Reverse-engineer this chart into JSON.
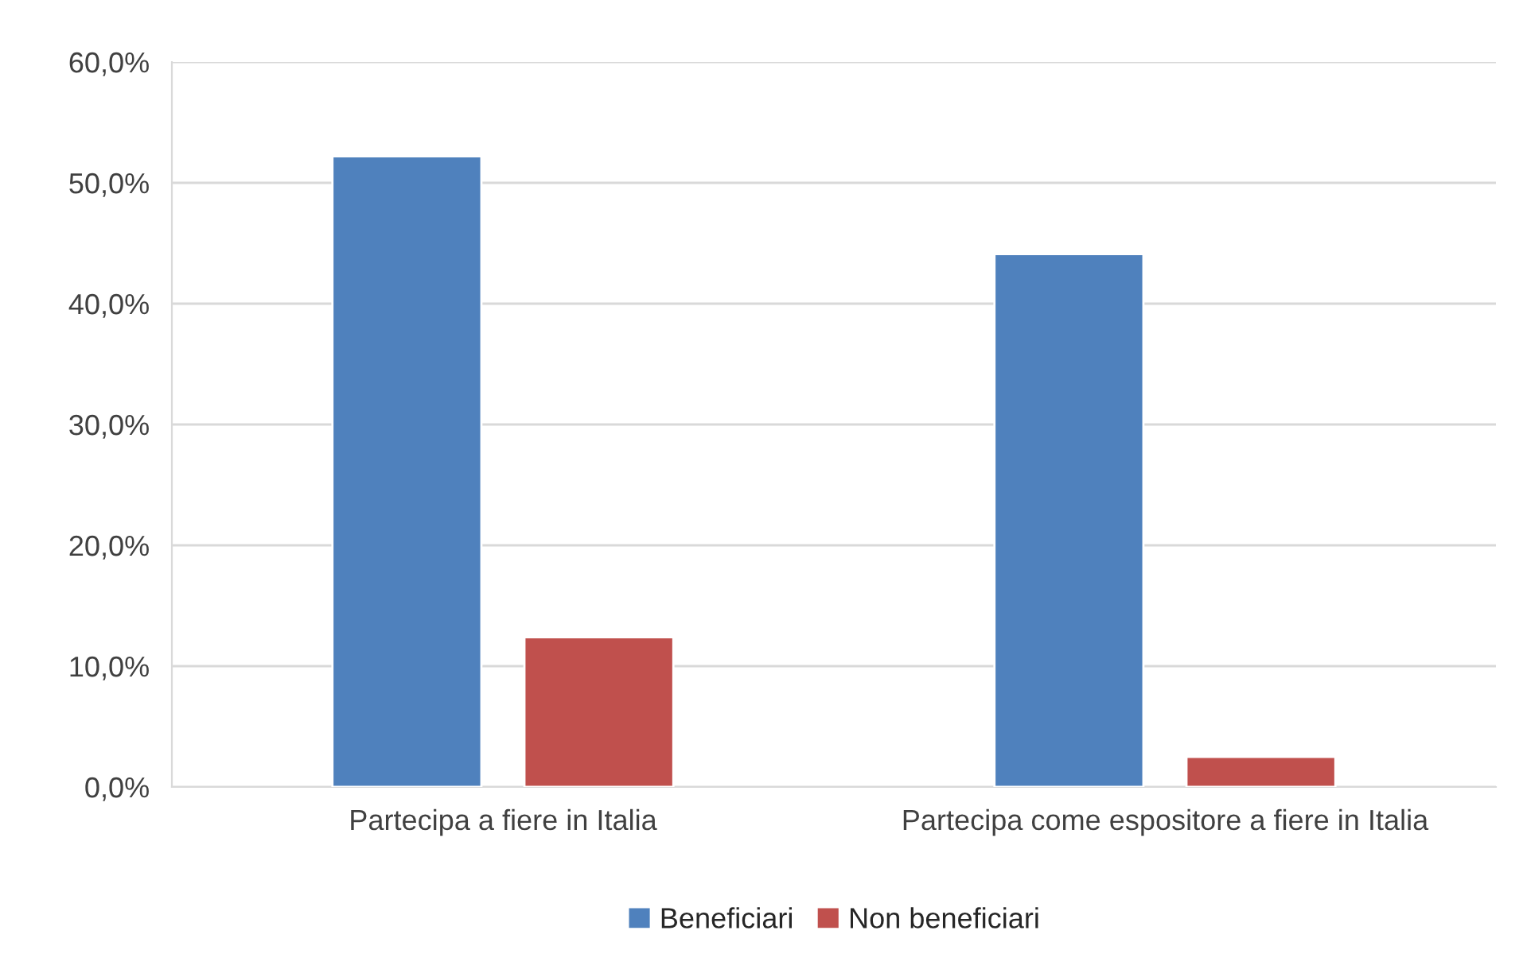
{
  "chart_data": {
    "type": "bar",
    "categories": [
      "Partecipa a fiere in Italia",
      "Partecipa come espositore a fiere in Italia"
    ],
    "series": [
      {
        "name": "Beneficiari",
        "color": "#4f81bd",
        "values": [
          52.2,
          44.1
        ]
      },
      {
        "name": "Non beneficiari",
        "color": "#c0504d",
        "values": [
          12.4,
          2.5
        ]
      }
    ],
    "ylim": [
      0,
      60
    ],
    "yticks": [
      {
        "value": 0,
        "label": "0,0%"
      },
      {
        "value": 10,
        "label": "10,0%"
      },
      {
        "value": 20,
        "label": "20,0%"
      },
      {
        "value": 30,
        "label": "30,0%"
      },
      {
        "value": 40,
        "label": "40,0%"
      },
      {
        "value": 50,
        "label": "50,0%"
      },
      {
        "value": 60,
        "label": "60,0%"
      }
    ],
    "grid": "y",
    "legend": "bottom"
  }
}
